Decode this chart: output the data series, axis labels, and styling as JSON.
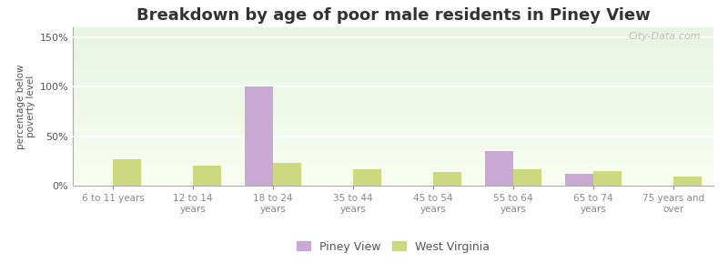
{
  "title": "Breakdown by age of poor male residents in Piney View",
  "ylabel": "percentage below\npoverty level",
  "categories": [
    "6 to 11 years",
    "12 to 14\nyears",
    "18 to 24\nyears",
    "35 to 44\nyears",
    "45 to 54\nyears",
    "55 to 64\nyears",
    "65 to 74\nyears",
    "75 years and\nover"
  ],
  "piney_view": [
    0,
    0,
    100,
    0,
    0,
    35,
    12,
    0
  ],
  "west_virginia": [
    27,
    20,
    23,
    17,
    14,
    17,
    15,
    9
  ],
  "piney_view_color": "#c9a8d4",
  "west_virginia_color": "#ccd97f",
  "ylim": [
    0,
    160
  ],
  "yticks": [
    0,
    50,
    100,
    150
  ],
  "bar_width": 0.35,
  "title_fontsize": 13,
  "axis_fontsize": 8,
  "legend_fontsize": 9,
  "watermark": "City-Data.com",
  "fig_bg": "#ffffff",
  "plot_bg_top": "#f5fde8",
  "plot_bg_bottom": "#d6f0d6"
}
